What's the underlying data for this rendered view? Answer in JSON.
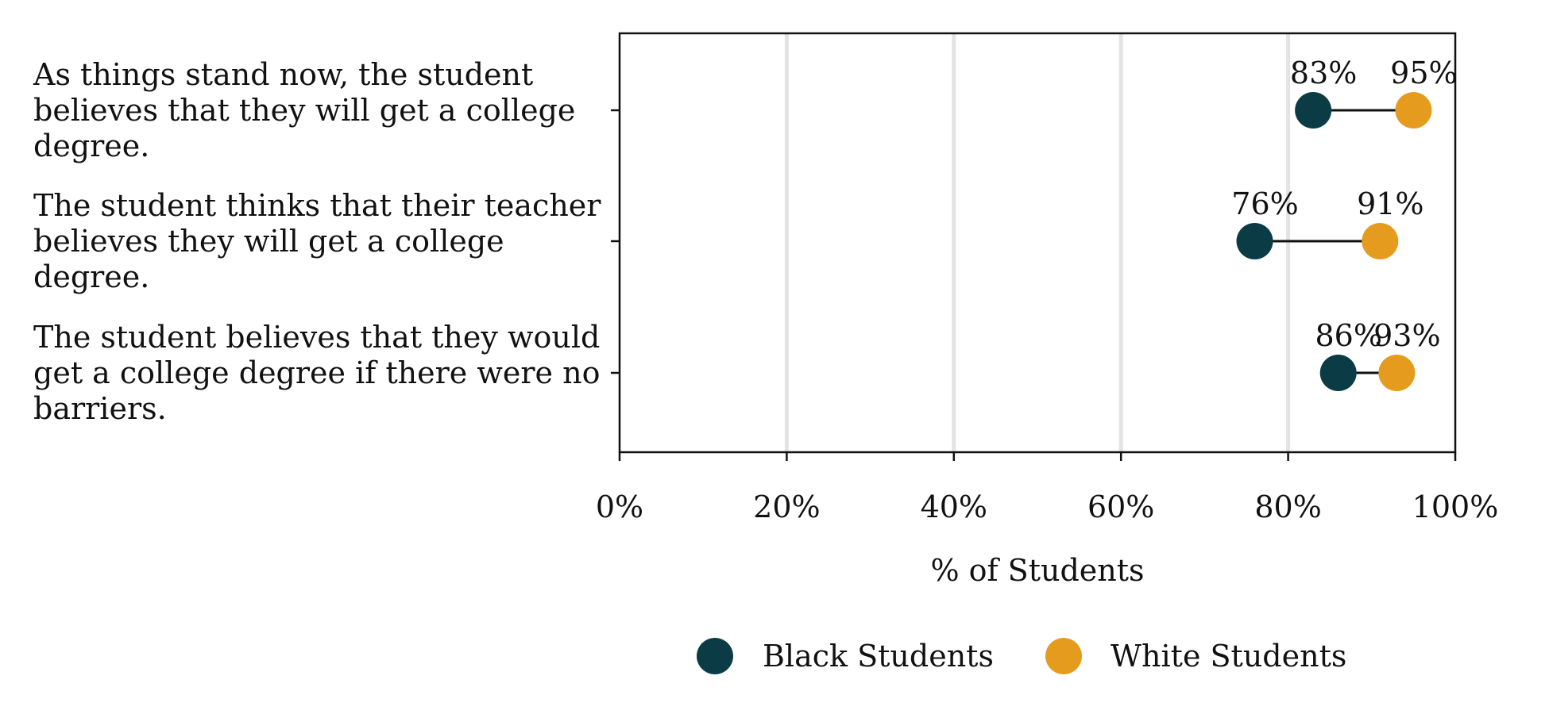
{
  "chart_data": {
    "type": "dumbbell",
    "title": "",
    "xlabel": "% of Students",
    "ylabel": "",
    "xlim": [
      0,
      100
    ],
    "x_ticks": [
      "0%",
      "20%",
      "40%",
      "60%",
      "80%",
      "100%"
    ],
    "x_tick_values": [
      0,
      20,
      40,
      60,
      80,
      100
    ],
    "grid": "vertical",
    "legend_position": "bottom",
    "categories": [
      {
        "lines": [
          "As things stand now, the student",
          "believes that they will get a college",
          "degree."
        ]
      },
      {
        "lines": [
          "The student thinks that their teacher",
          "believes they will get a college",
          "degree."
        ]
      },
      {
        "lines": [
          "The student believes that they would",
          "get a college degree if there were no",
          "barriers."
        ]
      }
    ],
    "series": [
      {
        "name": "Black Students",
        "color": "#0b3b45",
        "values": [
          83,
          76,
          86
        ],
        "value_labels": [
          "83%",
          "76%",
          "86%"
        ]
      },
      {
        "name": "White Students",
        "color": "#e59c1e",
        "values": [
          95,
          91,
          93
        ],
        "value_labels": [
          "95%",
          "91%",
          "93%"
        ]
      }
    ]
  }
}
